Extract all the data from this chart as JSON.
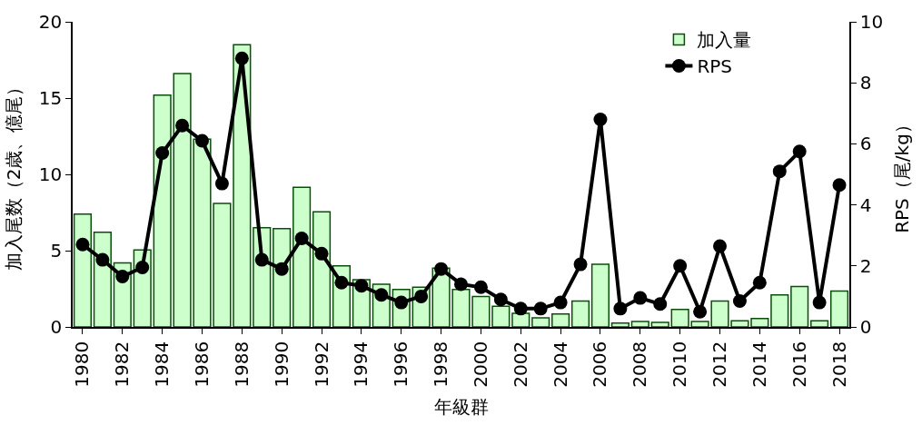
{
  "chart_data": {
    "type": "bar",
    "xlabel": "年級群",
    "ylabel": "加入尾数（2歳、億尾）",
    "y2label": "RPS（尾/kg）",
    "x": [
      1980,
      1981,
      1982,
      1983,
      1984,
      1985,
      1986,
      1987,
      1988,
      1989,
      1990,
      1991,
      1992,
      1993,
      1994,
      1995,
      1996,
      1997,
      1998,
      1999,
      2000,
      2001,
      2002,
      2003,
      2004,
      2005,
      2006,
      2007,
      2008,
      2009,
      2010,
      2011,
      2012,
      2013,
      2014,
      2015,
      2016,
      2017,
      2018
    ],
    "series": [
      {
        "name": "加入量",
        "color": "#ccffcc",
        "values": [
          7.4,
          6.2,
          4.2,
          5.05,
          15.2,
          16.6,
          12.3,
          8.1,
          18.5,
          6.5,
          6.45,
          9.15,
          7.55,
          4.0,
          3.1,
          2.8,
          2.45,
          2.6,
          3.85,
          2.45,
          2.0,
          1.35,
          0.9,
          0.6,
          0.85,
          1.7,
          4.1,
          0.25,
          0.35,
          0.3,
          1.15,
          0.35,
          1.7,
          0.4,
          0.55,
          2.1,
          2.65,
          0.4,
          2.35
        ]
      },
      {
        "name": "RPS",
        "type": "line",
        "axis": "y2",
        "color": "#000000",
        "marker": "circle",
        "line_style": "solid",
        "values": [
          2.7,
          2.2,
          1.65,
          1.95,
          5.7,
          6.6,
          6.1,
          4.7,
          8.8,
          2.2,
          1.9,
          2.9,
          2.4,
          1.45,
          1.35,
          1.05,
          0.8,
          1.0,
          1.9,
          1.4,
          1.3,
          0.9,
          0.6,
          0.6,
          0.8,
          2.05,
          6.8,
          0.6,
          0.95,
          0.75,
          2.0,
          0.5,
          2.65,
          0.85,
          1.45,
          5.1,
          5.75,
          0.8,
          4.65
        ]
      }
    ],
    "xlim": [
      1979.5,
      2018.5
    ],
    "xticks": [
      1980,
      1982,
      1984,
      1986,
      1988,
      1990,
      1992,
      1994,
      1996,
      1998,
      2000,
      2002,
      2004,
      2006,
      2008,
      2010,
      2012,
      2014,
      2016,
      2018
    ],
    "ylim": [
      0,
      20
    ],
    "yticks": [
      0,
      5,
      10,
      15,
      20
    ],
    "y2lim": [
      0,
      10
    ],
    "y2ticks": [
      0,
      2,
      4,
      6,
      8,
      10
    ],
    "legend": "top right"
  }
}
